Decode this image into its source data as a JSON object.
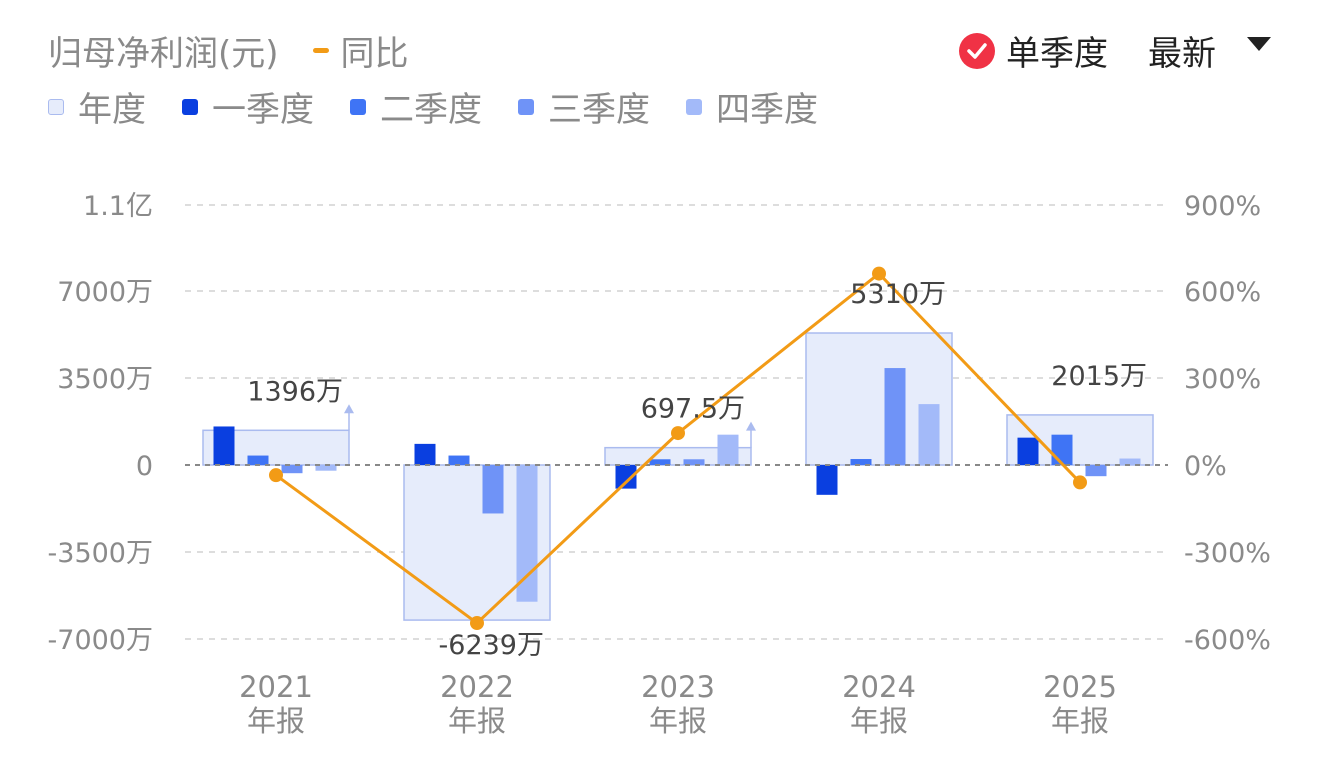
{
  "header": {
    "metric_label": "归母净利润(元)",
    "yoy_legend": "同比",
    "single_quarter_label": "单季度",
    "sort_label": "最新"
  },
  "legend": {
    "items": [
      {
        "label": "年度",
        "color": "#e6ecfb",
        "border": "#aabbef"
      },
      {
        "label": "一季度",
        "color": "#0a3fe0"
      },
      {
        "label": "二季度",
        "color": "#3f74f5"
      },
      {
        "label": "三季度",
        "color": "#6f93f7"
      },
      {
        "label": "四季度",
        "color": "#a3baf9"
      }
    ]
  },
  "colors": {
    "line": "#f29b16",
    "check": "#f03245",
    "grid": "#dddddd",
    "axis_text": "#8a8a8a",
    "label_text": "#444444"
  },
  "chart_data": {
    "type": "bar",
    "categories": [
      "2021",
      "2022",
      "2023",
      "2024",
      "2025"
    ],
    "category_suffix": "年报",
    "annual": [
      1396,
      -6239,
      697.5,
      5310,
      2015
    ],
    "annual_labels": [
      "1396万",
      "-6239万",
      "697.5万",
      "5310万",
      "2015万"
    ],
    "annual_up_arrow": [
      true,
      false,
      true,
      false,
      false
    ],
    "series": [
      {
        "name": "一季度",
        "values": [
          1550,
          850,
          -950,
          -1200,
          1100
        ]
      },
      {
        "name": "二季度",
        "values": [
          380,
          380,
          230,
          240,
          1220
        ]
      },
      {
        "name": "三季度",
        "values": [
          -330,
          -1950,
          230,
          3900,
          -450
        ]
      },
      {
        "name": "四季度",
        "values": [
          -230,
          -5500,
          1220,
          2450,
          260
        ]
      }
    ],
    "yoy_percent": [
      -35,
      -545,
      110,
      660,
      -60
    ],
    "y_left": {
      "ticks": [
        11000,
        7000,
        3500,
        0,
        -3500,
        -7000
      ],
      "tick_labels": [
        "1.1亿",
        "7000万",
        "3500万",
        "0",
        "-3500万",
        "-7000万"
      ],
      "unit": "万元"
    },
    "y_right": {
      "ticks": [
        900,
        600,
        300,
        0,
        -300,
        -600
      ],
      "tick_labels": [
        "900%",
        "600%",
        "300%",
        "0%",
        "-300%",
        "-600%"
      ]
    },
    "grid": true,
    "legend_position": "top-left"
  }
}
